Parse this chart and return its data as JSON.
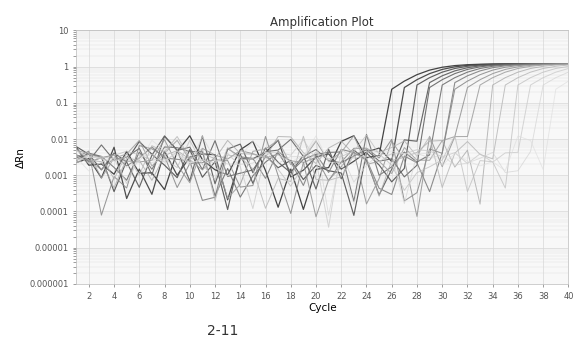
{
  "title": "Amplification Plot",
  "xlabel": "Cycle",
  "ylabel": "ΔRn",
  "xlim": [
    1,
    40
  ],
  "ylim_log": [
    1e-06,
    10
  ],
  "xticks": [
    2,
    4,
    6,
    8,
    10,
    12,
    14,
    16,
    18,
    20,
    22,
    24,
    26,
    28,
    30,
    32,
    34,
    36,
    38,
    40
  ],
  "yticks": [
    1e-06,
    1e-05,
    0.0001,
    0.001,
    0.01,
    0.1,
    1,
    10
  ],
  "ytick_labels": [
    "0.000001",
    "0.00001",
    "0.0001",
    "0.001",
    "0.01",
    "0.1",
    "1",
    "10"
  ],
  "subtitle": "2-11",
  "background_color": "#ffffff",
  "grid_color": "#d8d8d8",
  "ax_bg": "#f8f8f8"
}
